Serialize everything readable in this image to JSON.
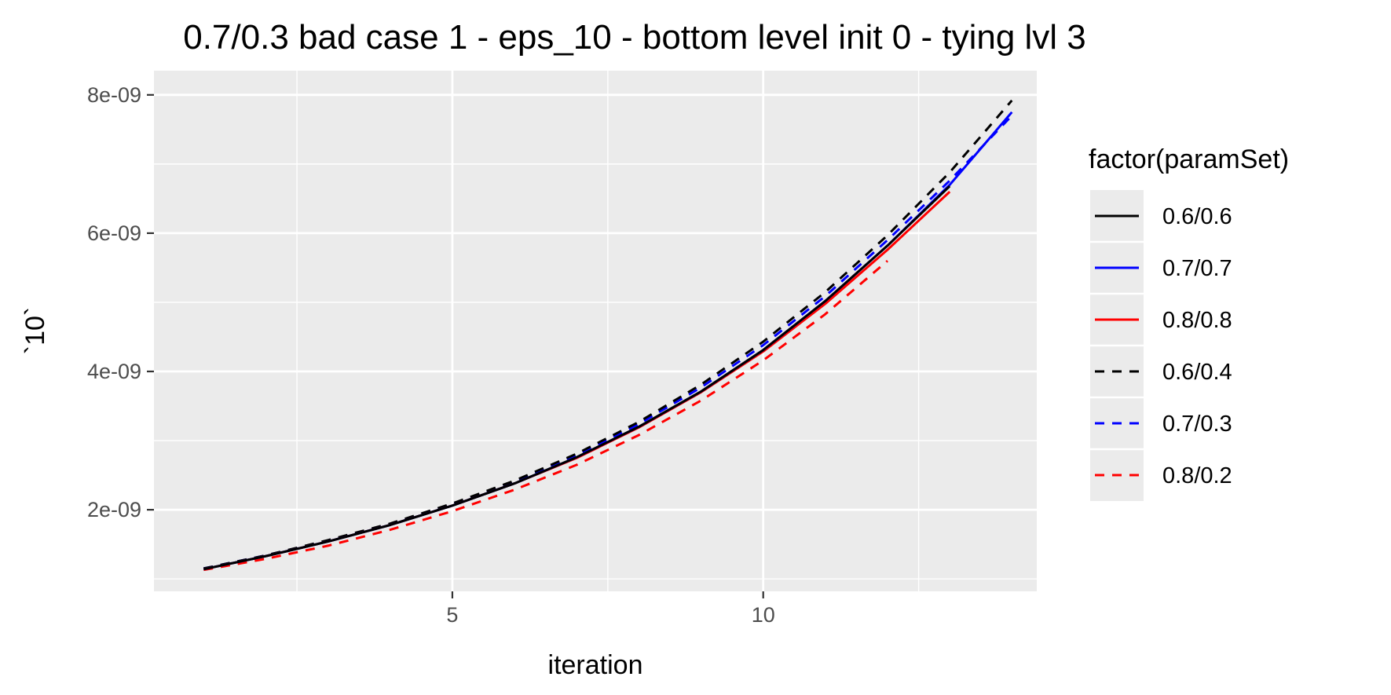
{
  "chart_data": {
    "type": "line",
    "title": "0.7/0.3 bad case 1 - eps_10 - bottom level init 0 - tying lvl 3",
    "xlabel": "iteration",
    "ylabel": "`10`",
    "xlim": [
      0.2,
      14.4
    ],
    "ylim": [
      8.2e-10,
      8.35e-09
    ],
    "x_ticks": [
      5,
      10
    ],
    "x_tick_labels": [
      "5",
      "10"
    ],
    "x_minor_ticks": [
      2.5,
      7.5,
      12.5
    ],
    "y_ticks": [
      2e-09,
      4e-09,
      6e-09,
      8e-09
    ],
    "y_tick_labels": [
      "2e-09",
      "4e-09",
      "6e-09",
      "8e-09"
    ],
    "y_minor_ticks": [
      1e-09,
      3e-09,
      5e-09,
      7e-09
    ],
    "grid": true,
    "panel_background": "#ebebeb",
    "legend": {
      "title": "factor(paramSet)",
      "position": "right"
    },
    "series": [
      {
        "name": "0.6/0.6",
        "color": "#000000",
        "dash": "solid",
        "x": [
          1,
          2,
          3,
          4,
          5,
          6,
          7,
          8,
          9,
          10,
          11,
          12,
          13
        ],
        "y": [
          1.14e-09,
          1.33e-09,
          1.54e-09,
          1.78e-09,
          2.06e-09,
          2.38e-09,
          2.76e-09,
          3.2e-09,
          3.71e-09,
          4.31e-09,
          5.02e-09,
          5.82e-09,
          6.68e-09
        ]
      },
      {
        "name": "0.7/0.7",
        "color": "#0000ff",
        "dash": "solid",
        "x": [
          1,
          2,
          3,
          4,
          5,
          6,
          7,
          8,
          9,
          10,
          11,
          12,
          13,
          14
        ],
        "y": [
          1.14e-09,
          1.33e-09,
          1.54e-09,
          1.78e-09,
          2.06e-09,
          2.38e-09,
          2.76e-09,
          3.2e-09,
          3.71e-09,
          4.31e-09,
          5.02e-09,
          5.82e-09,
          6.7e-09,
          7.75e-09
        ]
      },
      {
        "name": "0.8/0.8",
        "color": "#ff0000",
        "dash": "solid",
        "x": [
          1,
          2,
          3,
          4,
          5,
          6,
          7,
          8,
          9,
          10,
          11,
          12,
          13
        ],
        "y": [
          1.14e-09,
          1.33e-09,
          1.54e-09,
          1.78e-09,
          2.06e-09,
          2.38e-09,
          2.75e-09,
          3.19e-09,
          3.7e-09,
          4.29e-09,
          4.98e-09,
          5.76e-09,
          6.6e-09
        ]
      },
      {
        "name": "0.6/0.4",
        "color": "#000000",
        "dash": "dashed",
        "x": [
          1,
          2,
          3,
          4,
          5,
          6,
          7,
          8,
          9,
          10,
          11,
          12,
          13,
          14
        ],
        "y": [
          1.15e-09,
          1.34e-09,
          1.56e-09,
          1.8e-09,
          2.09e-09,
          2.42e-09,
          2.81e-09,
          3.27e-09,
          3.81e-09,
          4.43e-09,
          5.15e-09,
          5.97e-09,
          6.88e-09,
          7.92e-09
        ]
      },
      {
        "name": "0.7/0.3",
        "color": "#0000ff",
        "dash": "dashed",
        "x": [
          1,
          2,
          3,
          4,
          5,
          6,
          7,
          8,
          9,
          10,
          11,
          12,
          13,
          14
        ],
        "y": [
          1.15e-09,
          1.34e-09,
          1.55e-09,
          1.79e-09,
          2.08e-09,
          2.4e-09,
          2.79e-09,
          3.24e-09,
          3.77e-09,
          4.38e-09,
          5.09e-09,
          5.9e-09,
          6.76e-09,
          7.7e-09
        ]
      },
      {
        "name": "0.8/0.2",
        "color": "#ff0000",
        "dash": "dashed",
        "x": [
          1,
          2,
          3,
          4,
          5,
          6,
          7,
          8,
          9,
          10,
          11,
          12
        ],
        "y": [
          1.13e-09,
          1.29e-09,
          1.48e-09,
          1.71e-09,
          1.98e-09,
          2.29e-09,
          2.65e-09,
          3.08e-09,
          3.58e-09,
          4.16e-09,
          4.83e-09,
          5.6e-09
        ]
      }
    ]
  }
}
